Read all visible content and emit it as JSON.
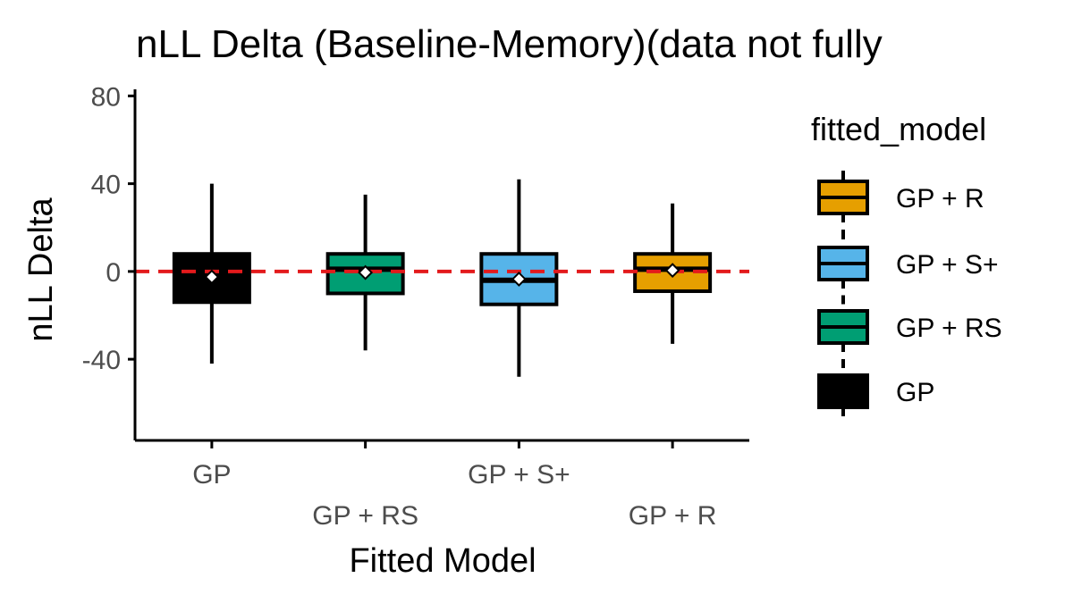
{
  "chart_data": {
    "type": "box",
    "title": "nLL Delta (Baseline-Memory)(data not fully",
    "xlabel": "Fitted Model",
    "ylabel": "nLL Delta",
    "ylim": [
      -77,
      83
    ],
    "yticks": [
      80,
      40,
      0,
      -40
    ],
    "ytick_labels": [
      "80",
      "40",
      "0",
      "-40"
    ],
    "reference_line": {
      "y": 0,
      "style": "dashed",
      "color": "#e31a1c"
    },
    "categories": [
      "GP",
      "GP + RS",
      "GP + S+",
      "GP + R"
    ],
    "series": [
      {
        "name": "GP",
        "color": "#000000",
        "whisker_low": -42,
        "q1": -14,
        "median": -2,
        "q3": 8,
        "whisker_high": 40,
        "mean": -2.5
      },
      {
        "name": "GP + RS",
        "color": "#009e73",
        "whisker_low": -36,
        "q1": -10,
        "median": 1,
        "q3": 8,
        "whisker_high": 35,
        "mean": -0.5
      },
      {
        "name": "GP + S+",
        "color": "#56b4e9",
        "whisker_low": -48,
        "q1": -15,
        "median": -4,
        "q3": 8,
        "whisker_high": 42,
        "mean": -3.5
      },
      {
        "name": "GP + R",
        "color": "#e69f00",
        "whisker_low": -33,
        "q1": -9,
        "median": 1,
        "q3": 8,
        "whisker_high": 31,
        "mean": 0.5
      }
    ],
    "legend": {
      "title": "fitted_model",
      "placement": "right",
      "items": [
        "GP + R",
        "GP + S+",
        "GP + RS",
        "GP"
      ]
    },
    "grid": false
  }
}
